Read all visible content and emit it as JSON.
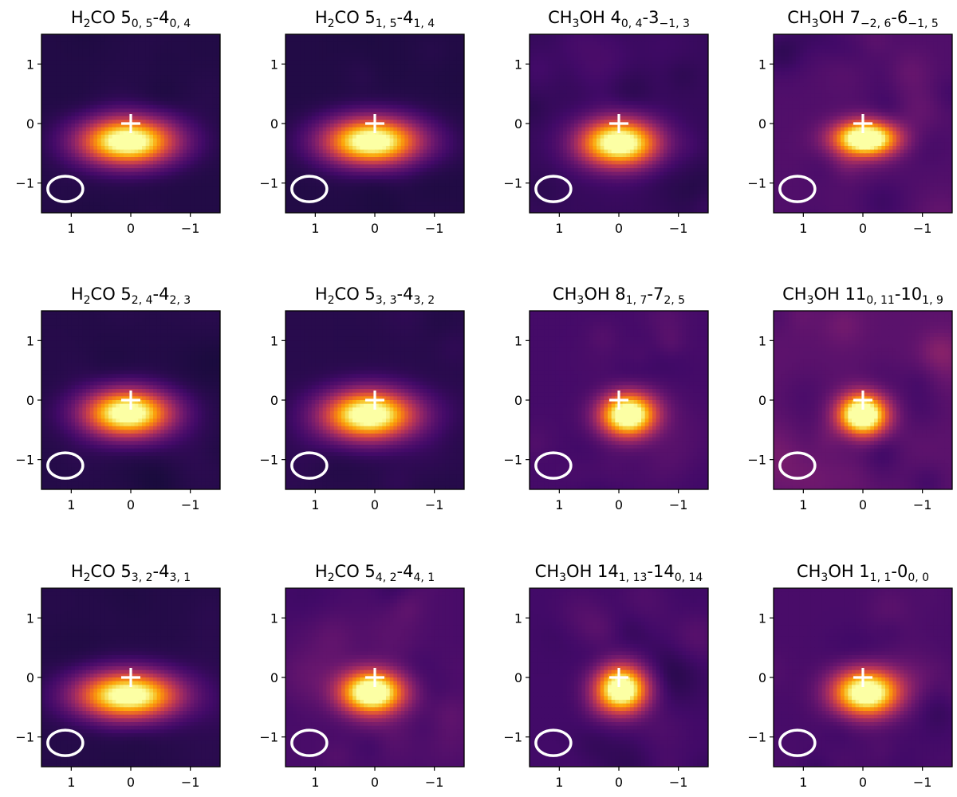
{
  "chart_data": {
    "type": "heatmap",
    "colormap": "inferno",
    "marker": "white cross at (0, 0)",
    "beam": "white ellipse, lower-left corner",
    "xlim": [
      1.5,
      -1.5
    ],
    "ylim": [
      -1.5,
      1.5
    ],
    "xticks": [
      "1",
      "0",
      "−1"
    ],
    "yticks": [
      "1",
      "0",
      "−1"
    ],
    "panels": [
      {
        "title": {
          "mol": "H",
          "msub": "2",
          "mrest": "CO",
          "up": "5",
          "upsub": "0, 5",
          "low": "4",
          "lowsub": "0, 4"
        },
        "peak": [
          0.05,
          -0.3
        ],
        "size": [
          0.55,
          0.27
        ],
        "noise": 0.15,
        "seed": 11
      },
      {
        "title": {
          "mol": "H",
          "msub": "2",
          "mrest": "CO",
          "up": "5",
          "upsub": "1, 5",
          "low": "4",
          "lowsub": "1, 4"
        },
        "peak": [
          0.05,
          -0.3
        ],
        "size": [
          0.55,
          0.27
        ],
        "noise": 0.15,
        "seed": 12
      },
      {
        "title": {
          "mol": "CH",
          "msub": "3",
          "mrest": "OH",
          "up": "4",
          "upsub": "0, 4",
          "low": "3",
          "lowsub": "−1, 3"
        },
        "peak": [
          0.0,
          -0.33
        ],
        "size": [
          0.45,
          0.27
        ],
        "noise": 0.4,
        "seed": 13
      },
      {
        "title": {
          "mol": "CH",
          "msub": "3",
          "mrest": "OH",
          "up": "7",
          "upsub": "−2, 6",
          "low": "6",
          "lowsub": "−1, 5"
        },
        "peak": [
          -0.05,
          -0.25
        ],
        "size": [
          0.37,
          0.2
        ],
        "noise": 0.75,
        "seed": 14
      },
      {
        "title": {
          "mol": "H",
          "msub": "2",
          "mrest": "CO",
          "up": "5",
          "upsub": "2, 4",
          "low": "4",
          "lowsub": "2, 3"
        },
        "peak": [
          0.05,
          -0.22
        ],
        "size": [
          0.5,
          0.27
        ],
        "noise": 0.18,
        "seed": 15
      },
      {
        "title": {
          "mol": "H",
          "msub": "2",
          "mrest": "CO",
          "up": "5",
          "upsub": "3, 3",
          "low": "4",
          "lowsub": "3, 2"
        },
        "peak": [
          0.1,
          -0.25
        ],
        "size": [
          0.52,
          0.28
        ],
        "noise": 0.22,
        "seed": 16
      },
      {
        "title": {
          "mol": "CH",
          "msub": "3",
          "mrest": "OH",
          "up": "8",
          "upsub": "1, 7",
          "low": "7",
          "lowsub": "2, 5"
        },
        "peak": [
          -0.15,
          -0.25
        ],
        "size": [
          0.32,
          0.25
        ],
        "noise": 0.6,
        "seed": 17
      },
      {
        "title": {
          "mol": "CH",
          "msub": "3",
          "mrest": "OH",
          "up": "11",
          "upsub": "0, 11",
          "low": "10",
          "lowsub": "1, 9"
        },
        "peak": [
          0.0,
          -0.25
        ],
        "size": [
          0.28,
          0.24
        ],
        "noise": 0.9,
        "seed": 18
      },
      {
        "title": {
          "mol": "H",
          "msub": "2",
          "mrest": "CO",
          "up": "5",
          "upsub": "3, 2",
          "low": "4",
          "lowsub": "3, 1"
        },
        "peak": [
          0.05,
          -0.3
        ],
        "size": [
          0.58,
          0.27
        ],
        "noise": 0.18,
        "seed": 19
      },
      {
        "title": {
          "mol": "H",
          "msub": "2",
          "mrest": "CO",
          "up": "5",
          "upsub": "4, 2",
          "low": "4",
          "lowsub": "4, 1"
        },
        "peak": [
          0.05,
          -0.25
        ],
        "size": [
          0.37,
          0.25
        ],
        "noise": 0.65,
        "seed": 20
      },
      {
        "title": {
          "mol": "CH",
          "msub": "3",
          "mrest": "OH",
          "up": "14",
          "upsub": "1, 13",
          "low": "14",
          "lowsub": "0, 14"
        },
        "peak": [
          -0.05,
          -0.2
        ],
        "size": [
          0.3,
          0.27
        ],
        "noise": 0.55,
        "seed": 21
      },
      {
        "title": {
          "mol": "CH",
          "msub": "3",
          "mrest": "OH",
          "up": "1",
          "upsub": "1, 1",
          "low": "0",
          "lowsub": "0, 0"
        },
        "peak": [
          -0.05,
          -0.25
        ],
        "size": [
          0.38,
          0.27
        ],
        "noise": 0.65,
        "seed": 22
      }
    ]
  }
}
